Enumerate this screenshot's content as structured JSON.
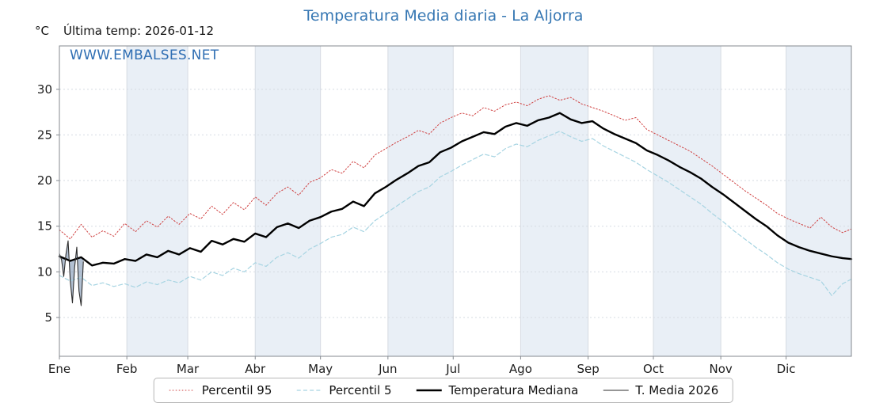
{
  "meta": {
    "title": "Temperatura Media diaria - La Aljorra",
    "unit_label": "°C",
    "last_temp_label": "Última temp: 2026-01-12",
    "watermark": "WWW.EMBALSES.NET"
  },
  "chart_data": {
    "type": "line",
    "title": "Temperatura Media diaria - La Aljorra",
    "title_color": "#3677b3",
    "watermark": "WWW.EMBALSES.NET",
    "watermark_color": "#2f6eb3",
    "band_color": "#e9eff6",
    "grid_color": "#d6dbe2",
    "axis_color": "#84898f",
    "x_axis": {
      "tick_labels": [
        "Ene",
        "Feb",
        "Mar",
        "Abr",
        "May",
        "Jun",
        "Jul",
        "Ago",
        "Sep",
        "Oct",
        "Nov",
        "Dic"
      ],
      "month_start_days": [
        1,
        32,
        60,
        91,
        121,
        152,
        182,
        213,
        244,
        274,
        305,
        335
      ],
      "range_days": [
        1,
        365
      ]
    },
    "y_axis": {
      "ticks": [
        5,
        10,
        15,
        20,
        25,
        30
      ],
      "range": [
        0.75,
        34.75
      ],
      "unit": "°C"
    },
    "shaded_months": [
      1,
      3,
      5,
      7,
      9,
      11
    ],
    "sample_days": [
      1,
      6,
      11,
      16,
      21,
      26,
      31,
      36,
      41,
      46,
      51,
      56,
      61,
      66,
      71,
      76,
      81,
      86,
      91,
      96,
      101,
      106,
      111,
      116,
      121,
      126,
      131,
      136,
      141,
      146,
      151,
      156,
      161,
      166,
      171,
      176,
      181,
      186,
      191,
      196,
      201,
      206,
      211,
      216,
      221,
      226,
      231,
      236,
      241,
      246,
      251,
      256,
      261,
      266,
      271,
      276,
      281,
      286,
      291,
      296,
      301,
      306,
      311,
      316,
      321,
      326,
      331,
      336,
      341,
      346,
      351,
      356,
      361,
      365
    ],
    "series": [
      {
        "name": "Percentil 95",
        "color": "#cf3f3f",
        "style": "dotted",
        "width": 1,
        "values": [
          14.6,
          13.6,
          15.2,
          13.8,
          14.5,
          13.9,
          15.3,
          14.4,
          15.6,
          14.9,
          16.1,
          15.2,
          16.4,
          15.8,
          17.2,
          16.3,
          17.6,
          16.8,
          18.2,
          17.3,
          18.6,
          19.3,
          18.4,
          19.8,
          20.3,
          21.2,
          20.8,
          22.1,
          21.4,
          22.8,
          23.5,
          24.2,
          24.8,
          25.5,
          25.1,
          26.3,
          26.9,
          27.4,
          27.1,
          28.0,
          27.6,
          28.3,
          28.6,
          28.2,
          28.9,
          29.3,
          28.8,
          29.1,
          28.4,
          28.0,
          27.6,
          27.1,
          26.6,
          26.9,
          25.6,
          25.0,
          24.4,
          23.8,
          23.2,
          22.4,
          21.6,
          20.7,
          19.8,
          18.9,
          18.1,
          17.3,
          16.4,
          15.8,
          15.3,
          14.8,
          16.0,
          14.9,
          14.3,
          14.7
        ]
      },
      {
        "name": "Percentil 5",
        "color": "#a6d4e2",
        "style": "dashed",
        "width": 1.2,
        "values": [
          9.6,
          9.0,
          9.4,
          8.5,
          8.8,
          8.4,
          8.7,
          8.3,
          8.9,
          8.6,
          9.1,
          8.8,
          9.5,
          9.1,
          10.0,
          9.6,
          10.4,
          10.0,
          11.0,
          10.6,
          11.6,
          12.1,
          11.5,
          12.5,
          13.1,
          13.8,
          14.1,
          14.9,
          14.4,
          15.6,
          16.4,
          17.2,
          18.0,
          18.8,
          19.3,
          20.4,
          21.0,
          21.7,
          22.3,
          22.9,
          22.6,
          23.5,
          24.0,
          23.7,
          24.4,
          24.9,
          25.4,
          24.8,
          24.3,
          24.6,
          23.8,
          23.2,
          22.6,
          22.0,
          21.2,
          20.5,
          19.8,
          19.0,
          18.2,
          17.4,
          16.4,
          15.5,
          14.5,
          13.6,
          12.7,
          11.9,
          11.0,
          10.3,
          9.8,
          9.4,
          9.0,
          7.4,
          8.7,
          9.2
        ]
      },
      {
        "name": "Temperatura Mediana",
        "color": "#000000",
        "style": "solid",
        "width": 2.4,
        "values": [
          11.7,
          11.2,
          11.6,
          10.7,
          11.0,
          10.9,
          11.4,
          11.2,
          11.9,
          11.6,
          12.3,
          11.9,
          12.6,
          12.2,
          13.4,
          13.0,
          13.6,
          13.3,
          14.2,
          13.8,
          14.9,
          15.3,
          14.8,
          15.6,
          16.0,
          16.6,
          16.9,
          17.7,
          17.2,
          18.6,
          19.3,
          20.1,
          20.8,
          21.6,
          22.0,
          23.1,
          23.6,
          24.3,
          24.8,
          25.3,
          25.1,
          25.9,
          26.3,
          26.0,
          26.6,
          26.9,
          27.4,
          26.7,
          26.3,
          26.5,
          25.7,
          25.1,
          24.6,
          24.1,
          23.3,
          22.8,
          22.2,
          21.5,
          20.9,
          20.2,
          19.3,
          18.5,
          17.6,
          16.7,
          15.8,
          15.0,
          14.0,
          13.2,
          12.7,
          12.3,
          12.0,
          11.7,
          11.5,
          11.4
        ]
      },
      {
        "name": "T. Media 2026",
        "color": "#2e2e2e",
        "style": "solid",
        "width": 1.1,
        "days": [
          1,
          2,
          3,
          4,
          5,
          6,
          7,
          8,
          9,
          10,
          11,
          12
        ],
        "values": [
          12.0,
          11.3,
          9.5,
          11.9,
          13.4,
          9.0,
          6.6,
          10.5,
          12.7,
          7.9,
          6.3,
          11.1
        ]
      }
    ],
    "fill_2026": {
      "color": "#7e96b4",
      "opacity": 0.6
    },
    "legend_position": "bottom-center",
    "grid": true
  }
}
